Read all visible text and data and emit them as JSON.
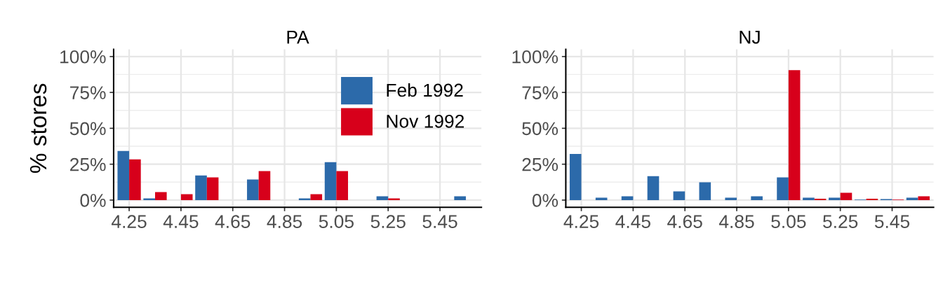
{
  "chart_data": [
    {
      "type": "bar",
      "title": "PA",
      "ylabel": "% stores",
      "x": [
        4.25,
        4.35,
        4.45,
        4.55,
        4.65,
        4.75,
        4.85,
        4.95,
        5.05,
        5.15,
        5.25,
        5.35,
        5.45,
        5.55
      ],
      "series": [
        {
          "name": "Feb 1992",
          "color": "#2c6aaa",
          "values": [
            34.2,
            1.2,
            0,
            17.2,
            0,
            14.3,
            0,
            1.2,
            26.4,
            0,
            2.7,
            0,
            0,
            2.7
          ]
        },
        {
          "name": "Nov 1992",
          "color": "#d7001b",
          "values": [
            28.4,
            5.6,
            4.1,
            15.8,
            0,
            20.2,
            0,
            4.1,
            20.2,
            0,
            1.2,
            0,
            0,
            0
          ]
        }
      ],
      "xlim": [
        4.19,
        5.61
      ],
      "xticks": [
        4.25,
        4.45,
        4.65,
        4.85,
        5.05,
        5.25,
        5.45
      ],
      "ylim": [
        -5,
        105
      ],
      "yticks": [
        {
          "value": 0,
          "label": "0%"
        },
        {
          "value": 25,
          "label": "25%"
        },
        {
          "value": 50,
          "label": "50%"
        },
        {
          "value": 75,
          "label": "75%"
        },
        {
          "value": 100,
          "label": "100%"
        }
      ],
      "grid": true,
      "legend": "top right"
    },
    {
      "type": "bar",
      "title": "NJ",
      "x": [
        4.25,
        4.35,
        4.45,
        4.55,
        4.65,
        4.75,
        4.85,
        4.95,
        5.05,
        5.15,
        5.25,
        5.35,
        5.45,
        5.55
      ],
      "series": [
        {
          "color": "#2c6aaa",
          "values": [
            32.1,
            1.7,
            2.7,
            16.7,
            6.1,
            12.4,
            1.7,
            2.7,
            15.8,
            1.7,
            1.7,
            0.3,
            0.7,
            1.7
          ]
        },
        {
          "color": "#d7001b",
          "values": [
            0,
            0,
            0,
            0,
            0,
            0,
            0,
            0,
            90.5,
            0.9,
            5.1,
            0.9,
            0.3,
            2.7
          ]
        }
      ],
      "xlim": [
        4.19,
        5.61
      ],
      "xticks": [
        4.25,
        4.45,
        4.65,
        4.85,
        5.05,
        5.25,
        5.45
      ],
      "ylim": [
        -5,
        105
      ],
      "yticks": [
        {
          "value": 0,
          "label": "0%"
        },
        {
          "value": 25,
          "label": "25%"
        },
        {
          "value": 50,
          "label": "50%"
        },
        {
          "value": 75,
          "label": "75%"
        },
        {
          "value": 100,
          "label": "100%"
        }
      ],
      "grid": true
    }
  ]
}
